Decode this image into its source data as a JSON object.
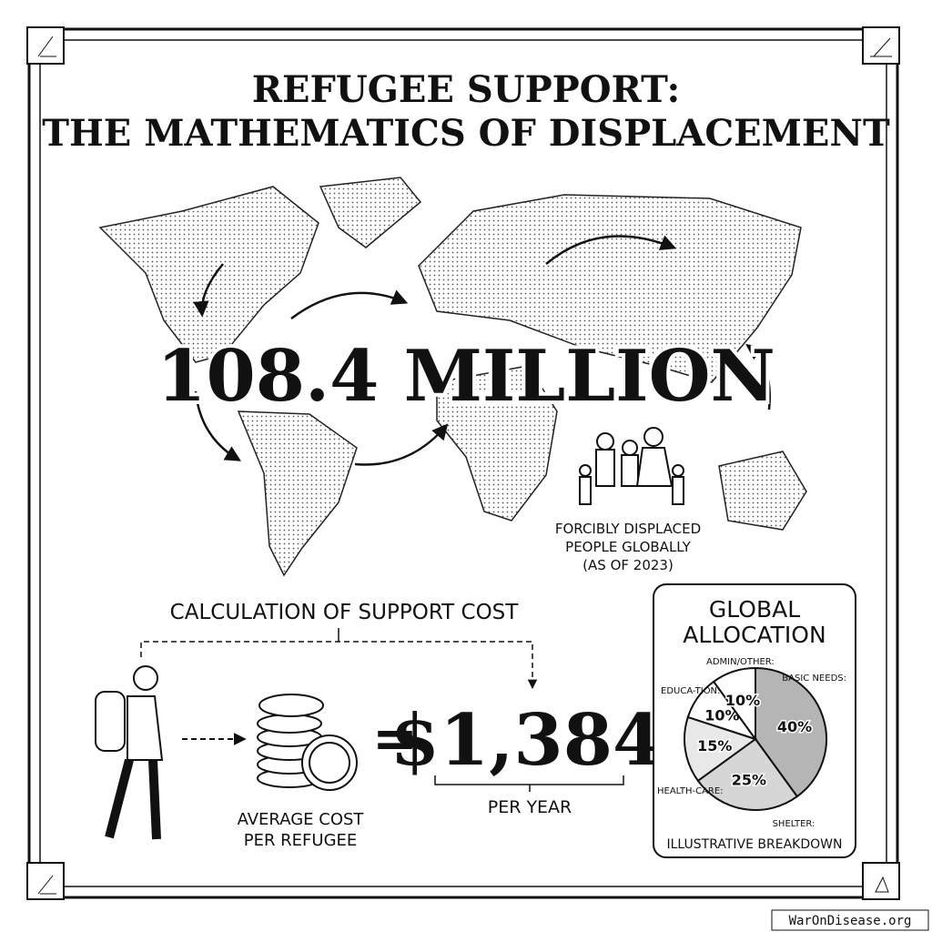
{
  "header": {
    "title_lines": [
      "REFUGEE SUPPORT:",
      "THE MATHEMATICS OF DISPLACEMENT"
    ]
  },
  "headline": "108.4 MILLION",
  "map_caption": [
    "FORCIBLY DISPLACED",
    "PEOPLE GLOBALLY",
    "(AS OF 2023)"
  ],
  "calculation": {
    "title": "CALCULATION OF SUPPORT COST",
    "equals": "=",
    "amount": "$1,384",
    "period": "PER YEAR",
    "label_lines": [
      "AVERAGE COST",
      "PER REFUGEE"
    ]
  },
  "chart_data": {
    "type": "pie",
    "title_lines": [
      "GLOBAL",
      "ALLOCATION"
    ],
    "categories": [
      "BASIC NEEDS:",
      "SHELTER:",
      "HEALTH-CARE:",
      "EDUCA-TION:",
      "ADMIN/OTHER:"
    ],
    "values": [
      40,
      25,
      15,
      10,
      10
    ],
    "value_labels": [
      "40%",
      "25%",
      "15%",
      "10%",
      "10%"
    ],
    "colors": [
      "#b5b5b5",
      "#d6d6d6",
      "#e8e8e8",
      "#ffffff",
      "#ffffff"
    ],
    "subtitle": "ILLUSTRATIVE BREAKDOWN"
  },
  "footer": "WarOnDisease.org"
}
